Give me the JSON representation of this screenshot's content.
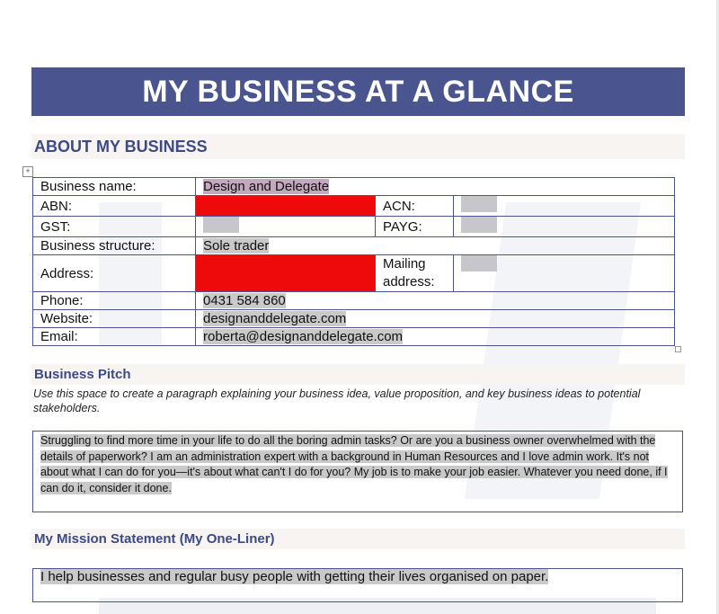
{
  "banner": {
    "title": "MY BUSINESS AT A GLANCE"
  },
  "about": {
    "heading": "ABOUT MY BUSINESS",
    "rows": {
      "business_name": {
        "label": "Business name:",
        "value": "Design and Delegate"
      },
      "abn": {
        "label": "ABN:",
        "value": "[redacted]"
      },
      "acn": {
        "label": "ACN:"
      },
      "gst": {
        "label": "GST:"
      },
      "payg": {
        "label": "PAYG:"
      },
      "structure": {
        "label": "Business structure:",
        "value": "Sole trader"
      },
      "address": {
        "label": "Address:",
        "value": "[redacted]"
      },
      "mailing": {
        "label": "Mailing address:"
      },
      "phone": {
        "label": "Phone:",
        "value": "0431 584 860"
      },
      "website": {
        "label": "Website:",
        "value": "designanddelegate.com"
      },
      "email": {
        "label": "Email:",
        "value": "roberta@designanddelegate.com"
      }
    }
  },
  "pitch": {
    "heading": "Business Pitch",
    "instruction": "Use this space to create a paragraph explaining your business idea, value proposition, and key business ideas to potential stakeholders.",
    "text": "Struggling to find more time in your life to do all the boring admin tasks? Or are you a business owner overwhelmed with the details of paperwork? I am an administration expert with a background in Human Resources and I love admin work. It's not about what I can do for you—it's about what can't I do for you? My job is to make your job easier. Whatever you need done, if I can do it, consider it done."
  },
  "mission": {
    "heading": "My Mission Statement (My One-Liner)",
    "text": "I help businesses and regular busy people with getting their lives organised on paper."
  },
  "colors": {
    "banner_bg": "#4a5590",
    "heading_text": "#3c4a86",
    "section_bar_bg": "#f7f4f2",
    "redaction": "#ee0a0a",
    "text_highlight": "#c9c9c9"
  }
}
